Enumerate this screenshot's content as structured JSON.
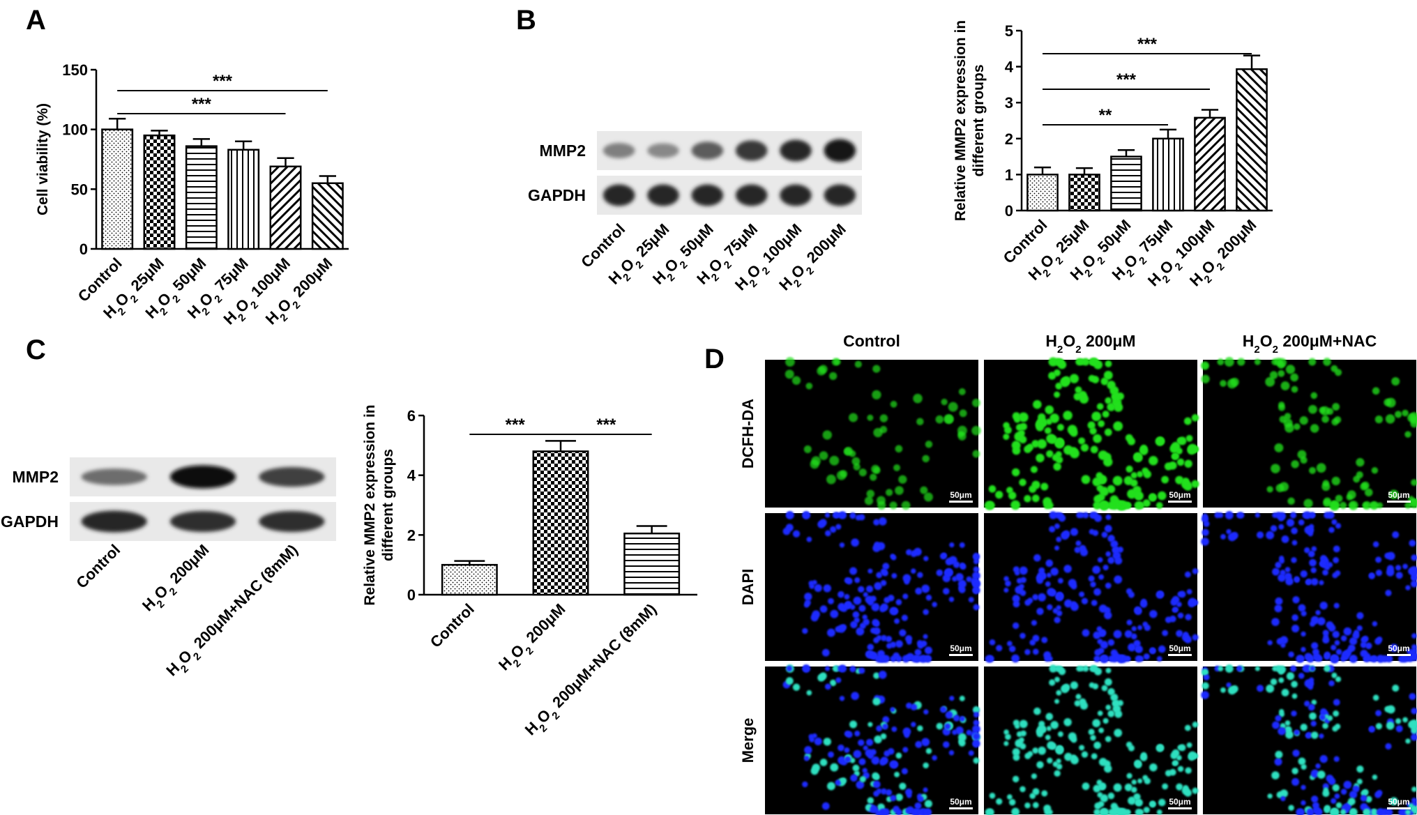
{
  "panels": {
    "A": "A",
    "B": "B",
    "C": "C",
    "D": "D"
  },
  "chart_data": [
    {
      "panel": "A",
      "type": "bar",
      "ylabel": "Cell viability (%)",
      "ylim": [
        0,
        150
      ],
      "yticks": [
        0,
        50,
        100,
        150
      ],
      "categories": [
        {
          "main": "Control",
          "h2o2": false
        },
        {
          "main": "H",
          "sub1": "2",
          "mid": "O",
          "sub2": "2",
          "rest": " 25μM",
          "h2o2": true
        },
        {
          "main": "H",
          "sub1": "2",
          "mid": "O",
          "sub2": "2",
          "rest": " 50μM",
          "h2o2": true
        },
        {
          "main": "H",
          "sub1": "2",
          "mid": "O",
          "sub2": "2",
          "rest": " 75μM",
          "h2o2": true
        },
        {
          "main": "H",
          "sub1": "2",
          "mid": "O",
          "sub2": "2",
          "rest": " 100μM",
          "h2o2": true
        },
        {
          "main": "H",
          "sub1": "2",
          "mid": "O",
          "sub2": "2",
          "rest": " 200μM",
          "h2o2": true
        }
      ],
      "values": [
        100,
        95,
        86,
        83,
        69,
        55
      ],
      "errors": [
        9,
        4,
        6,
        7,
        7,
        6
      ],
      "patterns": [
        "dots",
        "checker",
        "hlines",
        "vlines",
        "diag",
        "diag2"
      ],
      "significance": [
        {
          "from": 0,
          "to": 4,
          "label": "***",
          "level": 1
        },
        {
          "from": 0,
          "to": 5,
          "label": "***",
          "level": 2
        }
      ]
    },
    {
      "panel": "B",
      "type": "bar",
      "ylabel": [
        "Relative MMP2 expression in",
        "different groups"
      ],
      "ylim": [
        0,
        5
      ],
      "yticks": [
        0,
        1,
        2,
        3,
        4,
        5
      ],
      "categories": [
        {
          "main": "Control",
          "h2o2": false
        },
        {
          "main": "H",
          "sub1": "2",
          "mid": "O",
          "sub2": "2",
          "rest": " 25μM",
          "h2o2": true
        },
        {
          "main": "H",
          "sub1": "2",
          "mid": "O",
          "sub2": "2",
          "rest": " 50μM",
          "h2o2": true
        },
        {
          "main": "H",
          "sub1": "2",
          "mid": "O",
          "sub2": "2",
          "rest": " 75μM",
          "h2o2": true
        },
        {
          "main": "H",
          "sub1": "2",
          "mid": "O",
          "sub2": "2",
          "rest": " 100μM",
          "h2o2": true
        },
        {
          "main": "H",
          "sub1": "2",
          "mid": "O",
          "sub2": "2",
          "rest": " 200μM",
          "h2o2": true
        }
      ],
      "values": [
        1.0,
        1.0,
        1.5,
        2.0,
        2.58,
        3.93
      ],
      "errors": [
        0.2,
        0.18,
        0.18,
        0.25,
        0.22,
        0.38
      ],
      "patterns": [
        "dots",
        "checker",
        "hlines",
        "vlines",
        "diag",
        "diag2"
      ],
      "significance": [
        {
          "from": 0,
          "to": 3,
          "label": "**",
          "level": 1
        },
        {
          "from": 0,
          "to": 4,
          "label": "***",
          "level": 2
        },
        {
          "from": 0,
          "to": 5,
          "label": "***",
          "level": 3
        }
      ]
    },
    {
      "panel": "C",
      "type": "bar",
      "ylabel": [
        "Relative MMP2 expression in",
        "different groups"
      ],
      "ylim": [
        0,
        6
      ],
      "yticks": [
        0,
        2,
        4,
        6
      ],
      "categories": [
        {
          "main": "Control",
          "h2o2": false
        },
        {
          "main": "H",
          "sub1": "2",
          "mid": "O",
          "sub2": "2",
          "rest": " 200μM",
          "h2o2": true
        },
        {
          "main": "H",
          "sub1": "2",
          "mid": "O",
          "sub2": "2",
          "rest": " 200μM+NAC (8mM)",
          "h2o2": true
        }
      ],
      "values": [
        1.0,
        4.8,
        2.05
      ],
      "errors": [
        0.13,
        0.35,
        0.25
      ],
      "patterns": [
        "dots",
        "checker",
        "hlines"
      ],
      "significance": [
        {
          "from": 0,
          "to": 1,
          "label": "***",
          "level": 1
        },
        {
          "from": 1,
          "to": 2,
          "label": "***",
          "level": 1
        }
      ]
    }
  ],
  "blot_B": {
    "rows": [
      "MMP2",
      "GAPDH"
    ],
    "mmp2_intensity": [
      0.35,
      0.3,
      0.55,
      0.75,
      0.85,
      0.95
    ],
    "gapdh_intensity": [
      0.85,
      0.85,
      0.85,
      0.85,
      0.85,
      0.85
    ],
    "lanes": [
      {
        "main": "Control",
        "h2o2": false
      },
      {
        "main": "H",
        "sub1": "2",
        "mid": "O",
        "sub2": "2",
        "rest": " 25μM",
        "h2o2": true
      },
      {
        "main": "H",
        "sub1": "2",
        "mid": "O",
        "sub2": "2",
        "rest": " 50μM",
        "h2o2": true
      },
      {
        "main": "H",
        "sub1": "2",
        "mid": "O",
        "sub2": "2",
        "rest": " 75μM",
        "h2o2": true
      },
      {
        "main": "H",
        "sub1": "2",
        "mid": "O",
        "sub2": "2",
        "rest": " 100μM",
        "h2o2": true
      },
      {
        "main": "H",
        "sub1": "2",
        "mid": "O",
        "sub2": "2",
        "rest": " 200μM",
        "h2o2": true
      }
    ]
  },
  "blot_C": {
    "rows": [
      "MMP2",
      "GAPDH"
    ],
    "mmp2_intensity": [
      0.45,
      0.98,
      0.7
    ],
    "gapdh_intensity": [
      0.85,
      0.8,
      0.8
    ],
    "lanes": [
      {
        "main": "Control",
        "h2o2": false
      },
      {
        "main": "H",
        "sub1": "2",
        "mid": "O",
        "sub2": "2",
        "rest": " 200μM",
        "h2o2": true
      },
      {
        "main": "H",
        "sub1": "2",
        "mid": "O",
        "sub2": "2",
        "rest": " 200μM+NAC (8mM)",
        "h2o2": true
      }
    ]
  },
  "microscopy": {
    "columns": [
      {
        "main": "Control",
        "h2o2": false
      },
      {
        "main": "H",
        "sub1": "2",
        "mid": "O",
        "sub2": "2",
        "rest": " 200μM",
        "h2o2": true
      },
      {
        "main": "H",
        "sub1": "2",
        "mid": "O",
        "sub2": "2",
        "rest": " 200μM+NAC",
        "h2o2": true
      }
    ],
    "rows": [
      "DCFH-DA",
      "DAPI",
      "Merge"
    ],
    "scale_bar": "50μm",
    "colors": {
      "green": "#22e01e",
      "blue": "#1d2cff",
      "merge": "#2fe0c0"
    },
    "green_density": [
      0.35,
      1.0,
      0.5
    ]
  }
}
